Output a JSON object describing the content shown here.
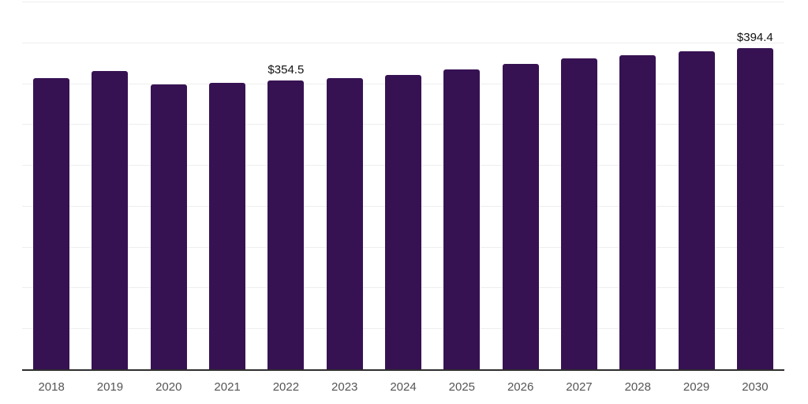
{
  "chart_data": {
    "type": "bar",
    "categories": [
      "2018",
      "2019",
      "2020",
      "2021",
      "2022",
      "2023",
      "2024",
      "2025",
      "2026",
      "2027",
      "2028",
      "2029",
      "2030"
    ],
    "values": [
      357,
      366,
      350,
      351.5,
      354.5,
      357.5,
      361.5,
      368,
      374.5,
      381.5,
      385.5,
      390,
      394.4
    ],
    "value_labels": [
      {
        "index": 4,
        "text": "$354.5"
      },
      {
        "index": 12,
        "text": "$394.4"
      }
    ],
    "xlabel": "",
    "ylabel": "",
    "ylim": [
      0,
      450
    ],
    "grid_step": 50,
    "grid": true,
    "legend": false,
    "colors": {
      "bar": "#371253",
      "gridline": "#eeeeee",
      "axis_line": "#2e2e2e",
      "tick_label": "#555555",
      "value_label": "#111111"
    }
  }
}
